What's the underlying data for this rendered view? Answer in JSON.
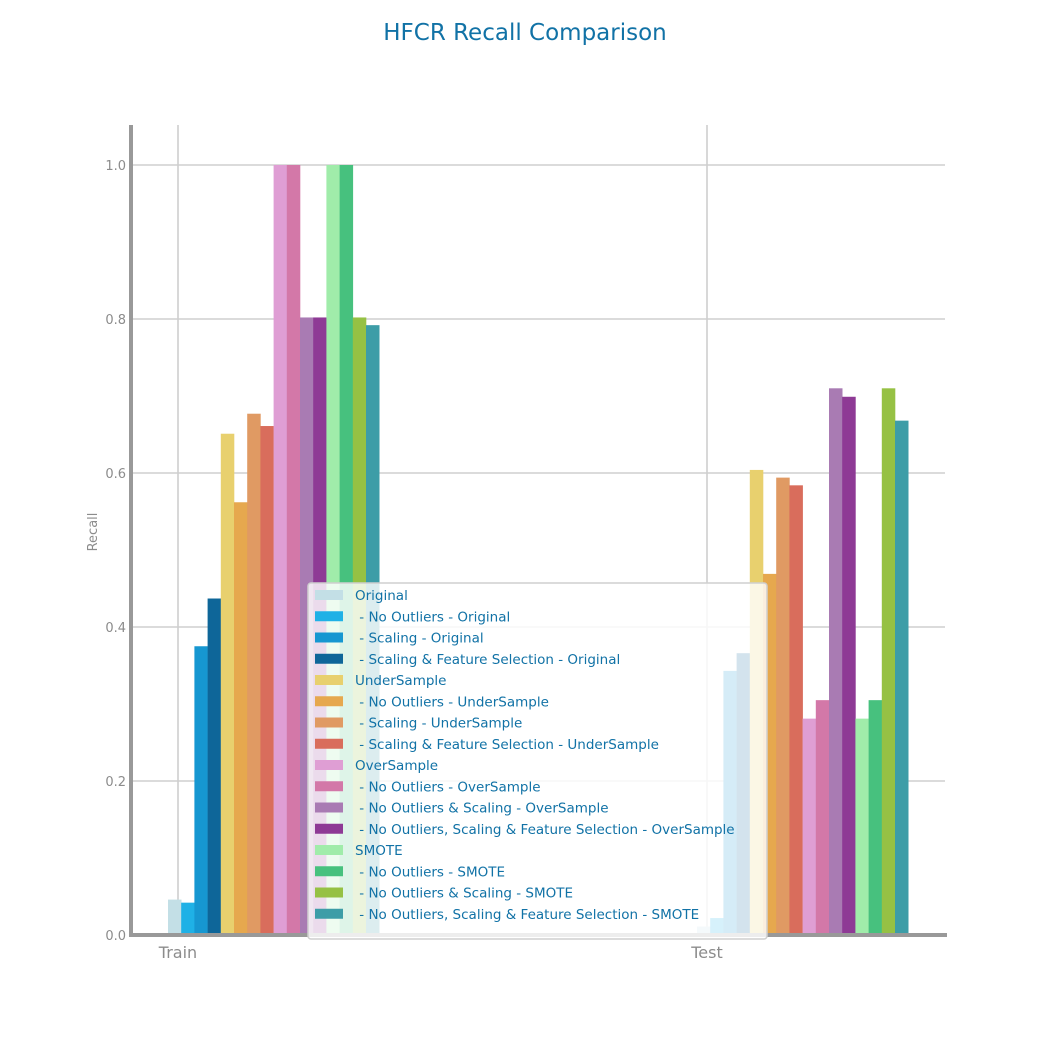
{
  "chart_data": {
    "type": "bar",
    "title": "HFCR Recall Comparison",
    "xlabel": "",
    "ylabel": "Recall",
    "ylim": [
      0,
      1.05
    ],
    "yticks": [
      "0.0",
      "0.2",
      "0.4",
      "0.6",
      "0.8",
      "1.0"
    ],
    "categories": [
      "Train",
      "Test"
    ],
    "grid": true,
    "legend_position": "lower-center",
    "series": [
      {
        "name": "Original",
        "color": "#c3dfe6",
        "values": [
          0.046,
          0.011
        ]
      },
      {
        "name": " - No Outliers - Original",
        "color": "#1fb1e6",
        "values": [
          0.042,
          0.022
        ]
      },
      {
        "name": " - Scaling - Original",
        "color": "#1697d1",
        "values": [
          0.375,
          0.343
        ]
      },
      {
        "name": " - Scaling & Feature Selection - Original",
        "color": "#0e6699",
        "values": [
          0.437,
          0.366
        ]
      },
      {
        "name": "UnderSample",
        "color": "#e8d06e",
        "values": [
          0.651,
          0.604
        ]
      },
      {
        "name": " - No Outliers - UnderSample",
        "color": "#e6a84e",
        "values": [
          0.562,
          0.469
        ]
      },
      {
        "name": " - Scaling - UnderSample",
        "color": "#e09a63",
        "values": [
          0.677,
          0.594
        ]
      },
      {
        "name": " - Scaling & Feature Selection - UnderSample",
        "color": "#d96d5c",
        "values": [
          0.661,
          0.584
        ]
      },
      {
        "name": "OverSample",
        "color": "#df9ed4",
        "values": [
          1.0,
          0.281
        ]
      },
      {
        "name": " - No Outliers - OverSample",
        "color": "#d378a8",
        "values": [
          1.0,
          0.305
        ]
      },
      {
        "name": " - No Outliers & Scaling - OverSample",
        "color": "#a97bb3",
        "values": [
          0.802,
          0.71
        ]
      },
      {
        "name": " - No Outliers, Scaling & Feature Selection - OverSample",
        "color": "#8e3a95",
        "values": [
          0.802,
          0.699
        ]
      },
      {
        "name": "SMOTE",
        "color": "#a0ecaa",
        "values": [
          1.0,
          0.281
        ]
      },
      {
        "name": " - No Outliers - SMOTE",
        "color": "#47c17e",
        "values": [
          1.0,
          0.305
        ]
      },
      {
        "name": " - No Outliers & Scaling - SMOTE",
        "color": "#96c144",
        "values": [
          0.802,
          0.71
        ]
      },
      {
        "name": " - No Outliers, Scaling & Feature Selection - SMOTE",
        "color": "#3d9da7",
        "values": [
          0.792,
          0.668
        ]
      }
    ]
  }
}
